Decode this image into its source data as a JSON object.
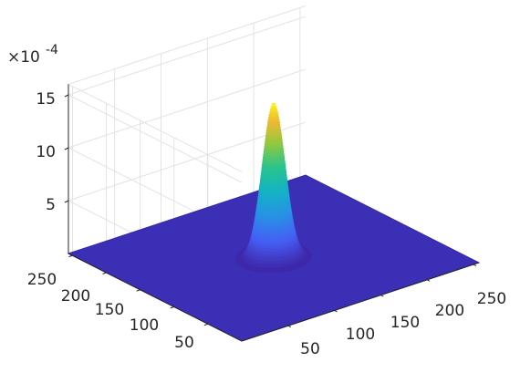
{
  "chart_data": {
    "type": "surface",
    "title": "",
    "xlabel": "",
    "ylabel": "",
    "zlabel": "",
    "x_ticks": [
      50,
      100,
      150,
      200,
      250
    ],
    "y_ticks": [
      50,
      100,
      150,
      200,
      250
    ],
    "z_ticks": [
      5,
      10,
      15
    ],
    "xlim": [
      0,
      256
    ],
    "ylim": [
      0,
      256
    ],
    "zlim": [
      0,
      0.0016
    ],
    "z_exponent": {
      "multiplier": "×10",
      "exponent": "-4"
    },
    "surface": {
      "shape": "gaussian",
      "peak_x": 128,
      "peak_y": 128,
      "peak_z": 0.00148,
      "sigma": 10
    },
    "colormap": "parula",
    "grid": true
  }
}
